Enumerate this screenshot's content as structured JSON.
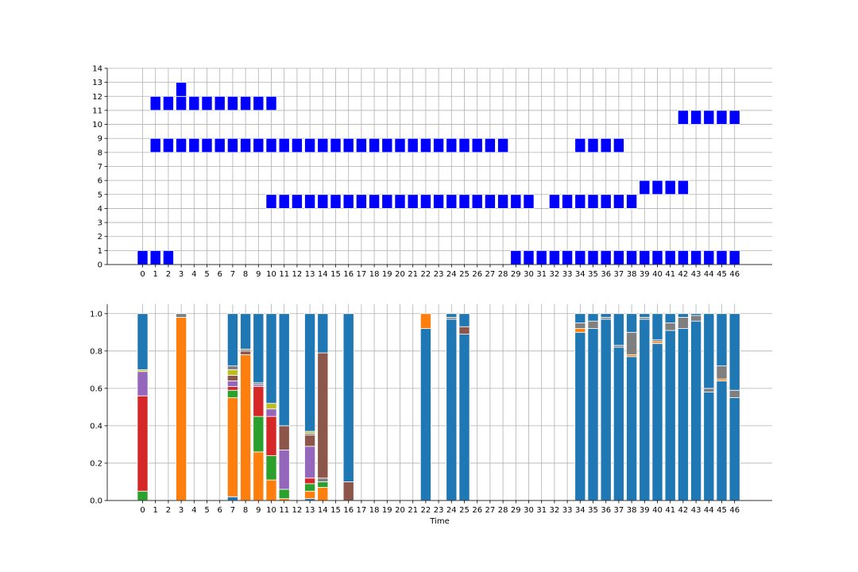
{
  "chart_data": [
    {
      "type": "bar",
      "title": "",
      "xlabel": "",
      "ylabel": "",
      "x_ticks": [
        0,
        1,
        2,
        3,
        4,
        5,
        6,
        7,
        8,
        9,
        10,
        11,
        12,
        13,
        14,
        15,
        16,
        17,
        18,
        19,
        20,
        21,
        22,
        23,
        24,
        25,
        26,
        27,
        28,
        29,
        30,
        31,
        32,
        33,
        34,
        35,
        36,
        37,
        38,
        39,
        40,
        41,
        42,
        43,
        44,
        45,
        46
      ],
      "y_ticks": [
        0,
        1,
        2,
        3,
        4,
        5,
        6,
        7,
        8,
        9,
        10,
        11,
        12,
        13,
        14
      ],
      "ylim": [
        0,
        14
      ],
      "grid": true,
      "color": "#0000ff",
      "note_levels": {
        "0": [
          0,
          1,
          2,
          29,
          30,
          31,
          32,
          33,
          34,
          35,
          36,
          37,
          38,
          39,
          40,
          41,
          42,
          43,
          44,
          45,
          46
        ],
        "4": [
          10,
          11,
          12,
          13,
          14,
          15,
          16,
          17,
          18,
          19,
          20,
          21,
          22,
          23,
          24,
          25,
          26,
          27,
          28,
          29,
          30,
          32,
          33,
          34,
          35,
          36,
          37,
          38
        ],
        "5": [
          39,
          40,
          41,
          42
        ],
        "8": [
          1,
          2,
          3,
          4,
          5,
          6,
          7,
          8,
          9,
          10,
          11,
          12,
          13,
          14,
          15,
          16,
          17,
          18,
          19,
          20,
          21,
          22,
          23,
          24,
          25,
          26,
          27,
          28,
          34,
          35,
          36,
          37
        ],
        "10": [
          42,
          43,
          44,
          45,
          46
        ],
        "11": [
          1,
          2,
          3,
          4,
          5,
          6,
          7,
          8,
          9,
          10
        ],
        "12": [
          3
        ]
      }
    },
    {
      "type": "bar",
      "stacked": true,
      "title": "",
      "xlabel": "Time",
      "ylabel": "",
      "x_ticks": [
        0,
        1,
        2,
        3,
        4,
        5,
        6,
        7,
        8,
        9,
        10,
        11,
        12,
        13,
        14,
        15,
        16,
        17,
        18,
        19,
        20,
        21,
        22,
        23,
        24,
        25,
        26,
        27,
        28,
        29,
        30,
        31,
        32,
        33,
        34,
        35,
        36,
        37,
        38,
        39,
        40,
        41,
        42,
        43,
        44,
        45,
        46
      ],
      "y_ticks": [
        "0.0",
        "0.2",
        "0.4",
        "0.6",
        "0.8",
        "1.0"
      ],
      "ylim": [
        0,
        1.05
      ],
      "grid": true,
      "colors": {
        "blue": "#1f77b4",
        "orange": "#ff7f0e",
        "green": "#2ca02c",
        "red": "#d62728",
        "purple": "#9467bd",
        "brown": "#8c564b",
        "pink": "#e377c2",
        "gray": "#7f7f7f",
        "olive": "#bcbd22",
        "cyan": "#17becf"
      },
      "stacks": [
        {
          "x": 0,
          "segments": [
            [
              "green",
              0.05
            ],
            [
              "red",
              0.51
            ],
            [
              "purple",
              0.13
            ],
            [
              "olive",
              0.01
            ],
            [
              "blue",
              0.3
            ]
          ]
        },
        {
          "x": 3,
          "segments": [
            [
              "orange",
              0.98
            ],
            [
              "gray",
              0.02
            ]
          ]
        },
        {
          "x": 7,
          "segments": [
            [
              "blue",
              0.02
            ],
            [
              "orange",
              0.53
            ],
            [
              "green",
              0.04
            ],
            [
              "red",
              0.02
            ],
            [
              "purple",
              0.03
            ],
            [
              "brown",
              0.03
            ],
            [
              "olive",
              0.03
            ],
            [
              "gray",
              0.02
            ],
            [
              "blue",
              0.28
            ]
          ]
        },
        {
          "x": 8,
          "segments": [
            [
              "orange",
              0.78
            ],
            [
              "brown",
              0.02
            ],
            [
              "gray",
              0.01
            ],
            [
              "blue",
              0.19
            ]
          ]
        },
        {
          "x": 9,
          "segments": [
            [
              "orange",
              0.26
            ],
            [
              "green",
              0.19
            ],
            [
              "red",
              0.16
            ],
            [
              "purple",
              0.01
            ],
            [
              "gray",
              0.01
            ],
            [
              "blue",
              0.37
            ]
          ]
        },
        {
          "x": 10,
          "segments": [
            [
              "orange",
              0.11
            ],
            [
              "green",
              0.13
            ],
            [
              "red",
              0.21
            ],
            [
              "purple",
              0.04
            ],
            [
              "olive",
              0.03
            ],
            [
              "blue",
              0.48
            ]
          ]
        },
        {
          "x": 11,
          "segments": [
            [
              "orange",
              0.01
            ],
            [
              "green",
              0.05
            ],
            [
              "purple",
              0.21
            ],
            [
              "brown",
              0.13
            ],
            [
              "blue",
              0.6
            ]
          ]
        },
        {
          "x": 13,
          "segments": [
            [
              "blue",
              0.01
            ],
            [
              "orange",
              0.04
            ],
            [
              "green",
              0.04
            ],
            [
              "red",
              0.03
            ],
            [
              "purple",
              0.17
            ],
            [
              "brown",
              0.06
            ],
            [
              "gray",
              0.01
            ],
            [
              "olive",
              0.01
            ],
            [
              "blue",
              0.63
            ]
          ]
        },
        {
          "x": 14,
          "segments": [
            [
              "orange",
              0.07
            ],
            [
              "green",
              0.03
            ],
            [
              "gray",
              0.02
            ],
            [
              "brown",
              0.67
            ],
            [
              "blue",
              0.21
            ]
          ]
        },
        {
          "x": 16,
          "segments": [
            [
              "brown",
              0.1
            ],
            [
              "blue",
              0.9
            ]
          ]
        },
        {
          "x": 22,
          "segments": [
            [
              "blue",
              0.92
            ],
            [
              "orange",
              0.08
            ]
          ]
        },
        {
          "x": 24,
          "segments": [
            [
              "blue",
              0.97
            ],
            [
              "gray",
              0.01
            ],
            [
              "blue",
              0.02
            ]
          ]
        },
        {
          "x": 25,
          "segments": [
            [
              "blue",
              0.89
            ],
            [
              "brown",
              0.04
            ],
            [
              "blue",
              0.07
            ]
          ]
        },
        {
          "x": 34,
          "segments": [
            [
              "blue",
              0.9
            ],
            [
              "orange",
              0.02
            ],
            [
              "gray",
              0.03
            ],
            [
              "blue",
              0.05
            ]
          ]
        },
        {
          "x": 35,
          "segments": [
            [
              "blue",
              0.92
            ],
            [
              "gray",
              0.04
            ],
            [
              "blue",
              0.04
            ]
          ]
        },
        {
          "x": 36,
          "segments": [
            [
              "blue",
              0.97
            ],
            [
              "gray",
              0.01
            ],
            [
              "blue",
              0.02
            ]
          ]
        },
        {
          "x": 37,
          "segments": [
            [
              "blue",
              0.82
            ],
            [
              "gray",
              0.01
            ],
            [
              "blue",
              0.17
            ]
          ]
        },
        {
          "x": 38,
          "segments": [
            [
              "blue",
              0.77
            ],
            [
              "orange",
              0.01
            ],
            [
              "gray",
              0.12
            ],
            [
              "blue",
              0.1
            ]
          ]
        },
        {
          "x": 39,
          "segments": [
            [
              "blue",
              0.97
            ],
            [
              "gray",
              0.01
            ],
            [
              "blue",
              0.02
            ]
          ]
        },
        {
          "x": 40,
          "segments": [
            [
              "blue",
              0.84
            ],
            [
              "orange",
              0.01
            ],
            [
              "gray",
              0.01
            ],
            [
              "blue",
              0.14
            ]
          ]
        },
        {
          "x": 41,
          "segments": [
            [
              "blue",
              0.91
            ],
            [
              "gray",
              0.04
            ],
            [
              "blue",
              0.05
            ]
          ]
        },
        {
          "x": 42,
          "segments": [
            [
              "blue",
              0.92
            ],
            [
              "gray",
              0.06
            ],
            [
              "blue",
              0.02
            ]
          ]
        },
        {
          "x": 43,
          "segments": [
            [
              "blue",
              0.96
            ],
            [
              "gray",
              0.03
            ],
            [
              "blue",
              0.01
            ]
          ]
        },
        {
          "x": 44,
          "segments": [
            [
              "blue",
              0.58
            ],
            [
              "gray",
              0.02
            ],
            [
              "blue",
              0.4
            ]
          ]
        },
        {
          "x": 45,
          "segments": [
            [
              "blue",
              0.64
            ],
            [
              "orange",
              0.01
            ],
            [
              "gray",
              0.07
            ],
            [
              "blue",
              0.28
            ]
          ]
        },
        {
          "x": 46,
          "segments": [
            [
              "blue",
              0.55
            ],
            [
              "gray",
              0.04
            ],
            [
              "blue",
              0.41
            ]
          ]
        }
      ]
    }
  ]
}
